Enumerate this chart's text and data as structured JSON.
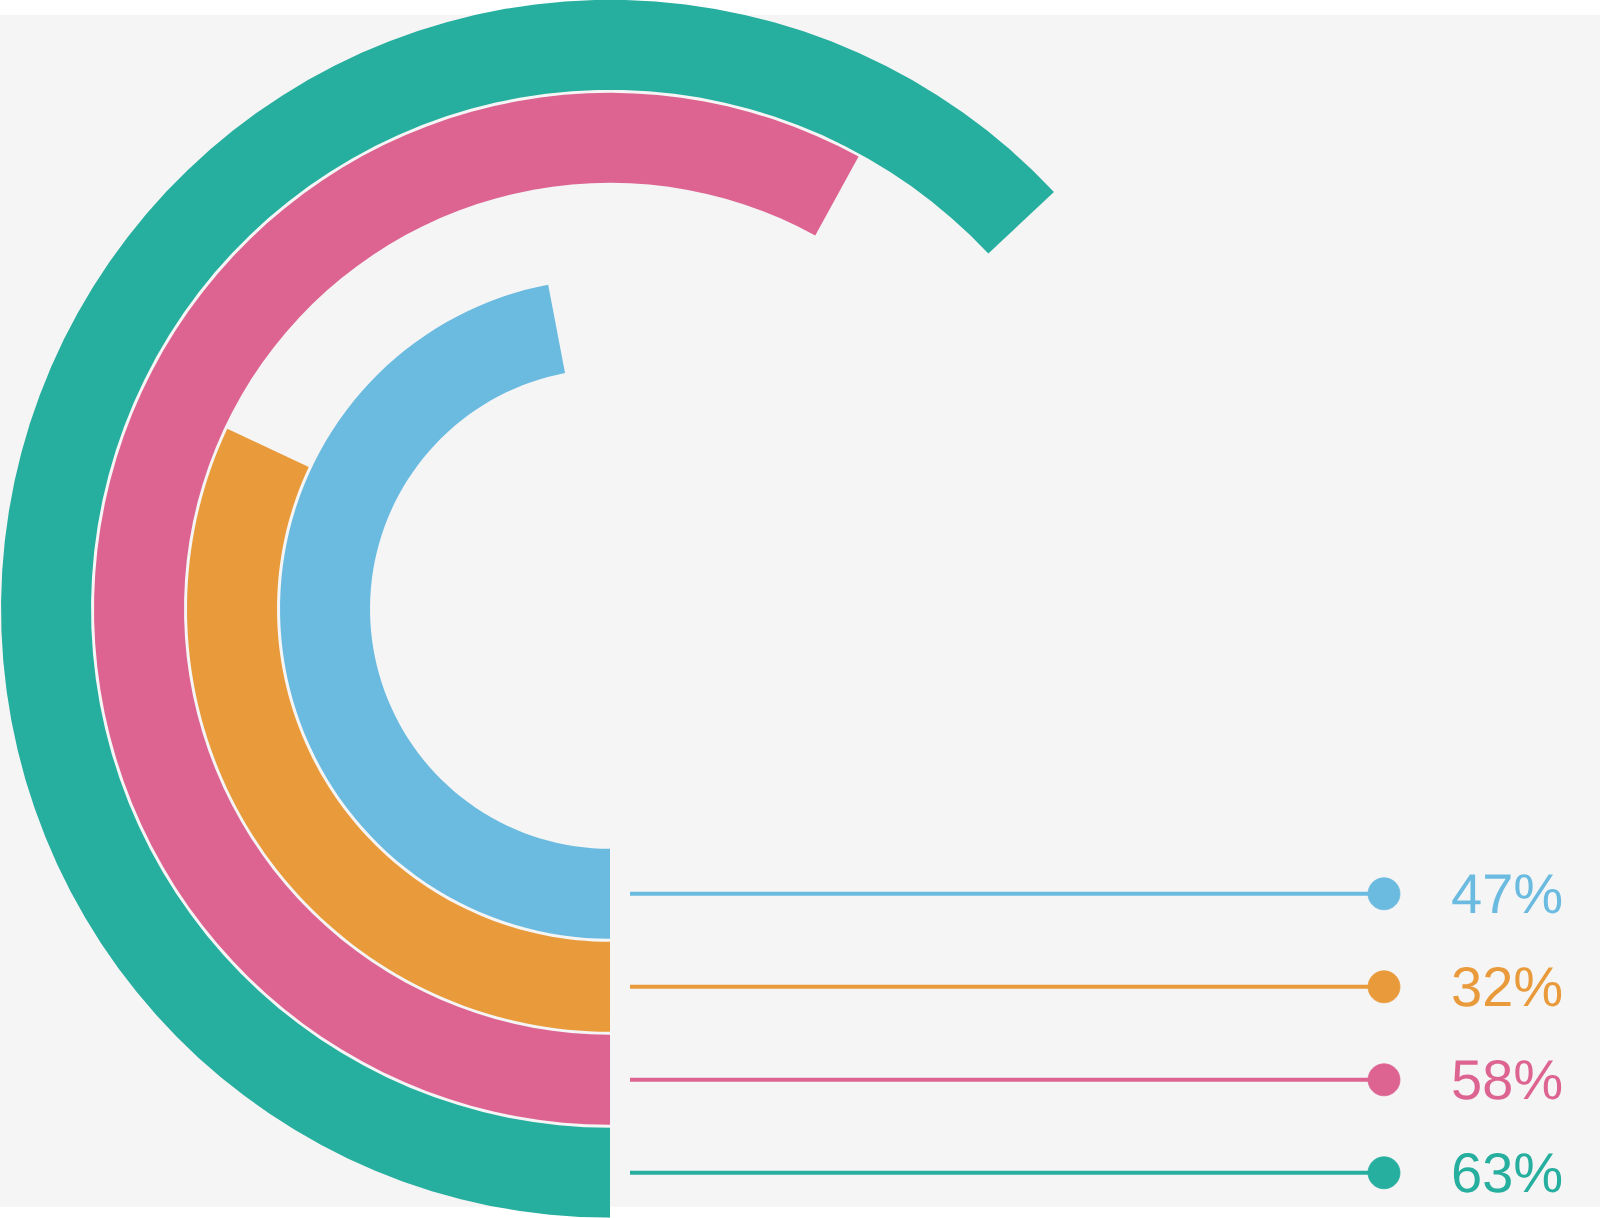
{
  "chart_data": {
    "type": "other",
    "categories": [
      null,
      null,
      null,
      null
    ],
    "values": [
      47,
      32,
      58,
      63
    ],
    "colors": [
      "#6bbbe1",
      "#e99a3a",
      "#dd6491",
      "#26ae9f"
    ],
    "value_labels": [
      "47%",
      "32%",
      "58%",
      "63%"
    ]
  }
}
